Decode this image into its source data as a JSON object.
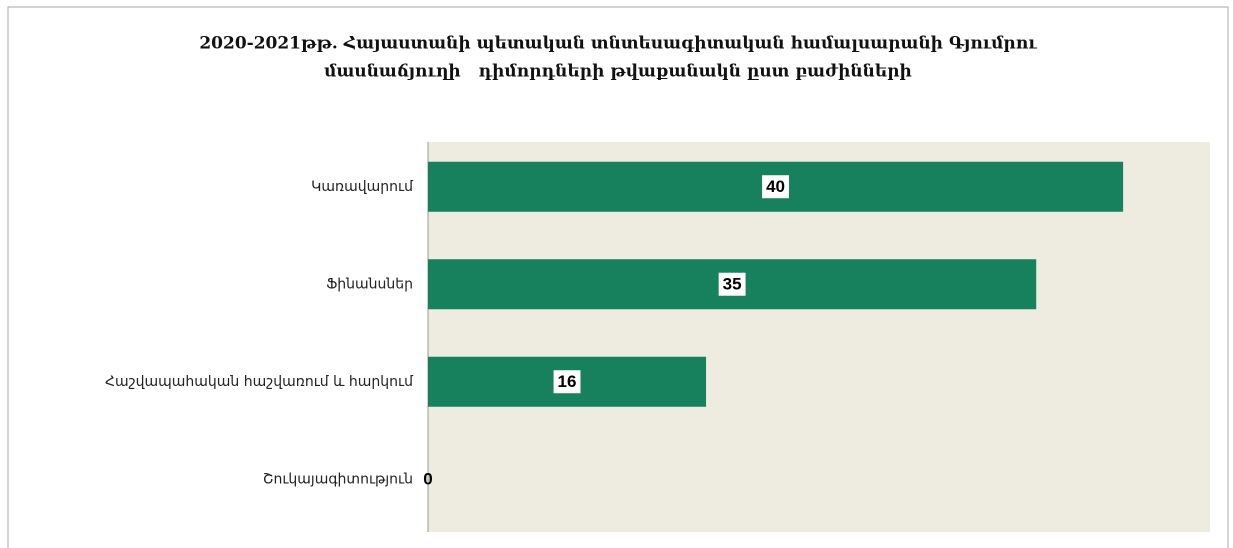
{
  "chart_data": {
    "type": "bar",
    "orientation": "horizontal",
    "title": [
      "2020-2021թթ. Հայաստանի պետական տնտեսագիտական համալսարանի Գյումրու",
      "մասնաճյուղի   դիմորդների թվաքանակն ըստ բաժինների"
    ],
    "categories": [
      "Կառավարում",
      "Ֆինանսներ",
      "Հաշվապահական հաշվառում և հարկում",
      "Շուկայագիտություն"
    ],
    "values": [
      40,
      35,
      16,
      0
    ],
    "color": "#17805c",
    "xlim": [
      0,
      45
    ]
  }
}
